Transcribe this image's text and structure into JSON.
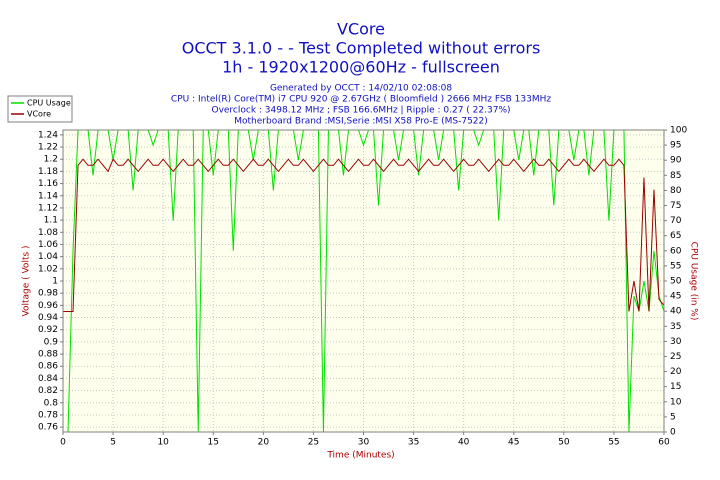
{
  "chart_data": {
    "type": "line",
    "title": "VCore",
    "subtitle": "OCCT 3.1.0 -  - Test Completed without errors",
    "subtitle2": "1h - 1920x1200@60Hz - fullscreen",
    "info": [
      "Generated by OCCT : 14/02/10 02:08:08",
      "CPU : Intel(R) Core(TM) i7 CPU 920 @ 2.67GHz ( Bloomfield ) 2666 MHz FSB 133MHz",
      "Overclock : 3498.12 MHz ; FSB 166.6MHz | Ripple : 0.27 ( 22.37%)",
      "Motherboard Brand :MSI,Serie :MSI X58 Pro-E (MS-7522)"
    ],
    "xlabel": "Time (Minutes)",
    "ylabel": "Voltage ( Volts )",
    "y2label": "CPU Usage (in %)",
    "x": [
      0,
      0.5,
      1,
      1.5,
      2,
      2.5,
      3,
      3.5,
      4,
      4.5,
      5,
      5.5,
      6,
      6.5,
      7,
      7.5,
      8,
      8.5,
      9,
      9.5,
      10,
      10.5,
      11,
      11.5,
      12,
      12.5,
      13,
      13.5,
      14,
      14.5,
      15,
      15.5,
      16,
      16.5,
      17,
      17.5,
      18,
      18.5,
      19,
      19.5,
      20,
      20.5,
      21,
      21.5,
      22,
      22.5,
      23,
      23.5,
      24,
      24.5,
      25,
      25.5,
      26,
      26.5,
      27,
      27.5,
      28,
      28.5,
      29,
      29.5,
      30,
      30.5,
      31,
      31.5,
      32,
      32.5,
      33,
      33.5,
      34,
      34.5,
      35,
      35.5,
      36,
      36.5,
      37,
      37.5,
      38,
      38.5,
      39,
      39.5,
      40,
      40.5,
      41,
      41.5,
      42,
      42.5,
      43,
      43.5,
      44,
      44.5,
      45,
      45.5,
      46,
      46.5,
      47,
      47.5,
      48,
      48.5,
      49,
      49.5,
      50,
      50.5,
      51,
      51.5,
      52,
      52.5,
      53,
      53.5,
      54,
      54.5,
      55,
      55.5,
      56,
      56.5,
      57,
      57.5,
      58,
      58.5,
      59,
      59.5,
      60
    ],
    "series": [
      {
        "name": "CPU Usage",
        "color": "#00e000",
        "axis": "y2",
        "values": [
          0,
          0,
          60,
          100,
          100,
          100,
          85,
          100,
          100,
          100,
          90,
          100,
          100,
          100,
          80,
          100,
          100,
          100,
          95,
          100,
          100,
          100,
          70,
          100,
          100,
          100,
          100,
          0,
          100,
          100,
          85,
          100,
          100,
          100,
          60,
          100,
          100,
          100,
          90,
          100,
          100,
          100,
          80,
          100,
          100,
          100,
          100,
          90,
          100,
          100,
          100,
          100,
          0,
          100,
          100,
          100,
          85,
          100,
          100,
          100,
          95,
          100,
          100,
          75,
          100,
          100,
          100,
          90,
          100,
          100,
          100,
          85,
          100,
          100,
          100,
          90,
          100,
          100,
          100,
          80,
          100,
          100,
          100,
          95,
          100,
          100,
          100,
          70,
          100,
          100,
          100,
          90,
          100,
          100,
          85,
          100,
          100,
          100,
          75,
          100,
          100,
          100,
          90,
          100,
          100,
          85,
          100,
          100,
          100,
          70,
          100,
          100,
          100,
          0,
          45,
          40,
          50,
          40,
          60,
          45,
          40
        ]
      },
      {
        "name": "VCore",
        "color": "#990000",
        "values": [
          0.95,
          0.95,
          0.95,
          1.19,
          1.2,
          1.19,
          1.19,
          1.2,
          1.19,
          1.18,
          1.2,
          1.19,
          1.19,
          1.2,
          1.19,
          1.18,
          1.19,
          1.2,
          1.19,
          1.19,
          1.2,
          1.19,
          1.18,
          1.19,
          1.2,
          1.19,
          1.19,
          1.2,
          1.19,
          1.18,
          1.19,
          1.2,
          1.19,
          1.19,
          1.2,
          1.19,
          1.18,
          1.19,
          1.2,
          1.19,
          1.19,
          1.2,
          1.19,
          1.18,
          1.19,
          1.2,
          1.19,
          1.19,
          1.2,
          1.19,
          1.18,
          1.19,
          1.2,
          1.19,
          1.19,
          1.2,
          1.19,
          1.18,
          1.19,
          1.2,
          1.19,
          1.19,
          1.2,
          1.19,
          1.18,
          1.19,
          1.2,
          1.19,
          1.19,
          1.2,
          1.19,
          1.18,
          1.19,
          1.2,
          1.19,
          1.19,
          1.2,
          1.19,
          1.18,
          1.19,
          1.2,
          1.19,
          1.19,
          1.2,
          1.19,
          1.18,
          1.19,
          1.2,
          1.19,
          1.19,
          1.2,
          1.19,
          1.18,
          1.19,
          1.2,
          1.19,
          1.19,
          1.2,
          1.19,
          1.18,
          1.19,
          1.2,
          1.19,
          1.19,
          1.2,
          1.19,
          1.18,
          1.19,
          1.2,
          1.19,
          1.19,
          1.2,
          1.19,
          0.95,
          1.0,
          0.95,
          1.17,
          0.95,
          1.15,
          0.97,
          0.96
        ]
      }
    ],
    "xlim": [
      0,
      60
    ],
    "xticks": [
      0,
      5,
      10,
      15,
      20,
      25,
      30,
      35,
      40,
      45,
      50,
      55,
      60
    ],
    "ylim": [
      0.752,
      1.248
    ],
    "yticks": [
      0.76,
      0.78,
      0.8,
      0.82,
      0.84,
      0.86,
      0.88,
      0.9,
      0.92,
      0.94,
      0.96,
      0.98,
      1,
      1.02,
      1.04,
      1.06,
      1.08,
      1.1,
      1.12,
      1.14,
      1.16,
      1.18,
      1.2,
      1.22,
      1.24
    ],
    "y2lim": [
      0,
      100
    ],
    "y2ticks": [
      0,
      5,
      10,
      15,
      20,
      25,
      30,
      35,
      40,
      45,
      50,
      55,
      60,
      65,
      70,
      75,
      80,
      85,
      90,
      95,
      100
    ],
    "grid": true,
    "legend": "top-left"
  }
}
